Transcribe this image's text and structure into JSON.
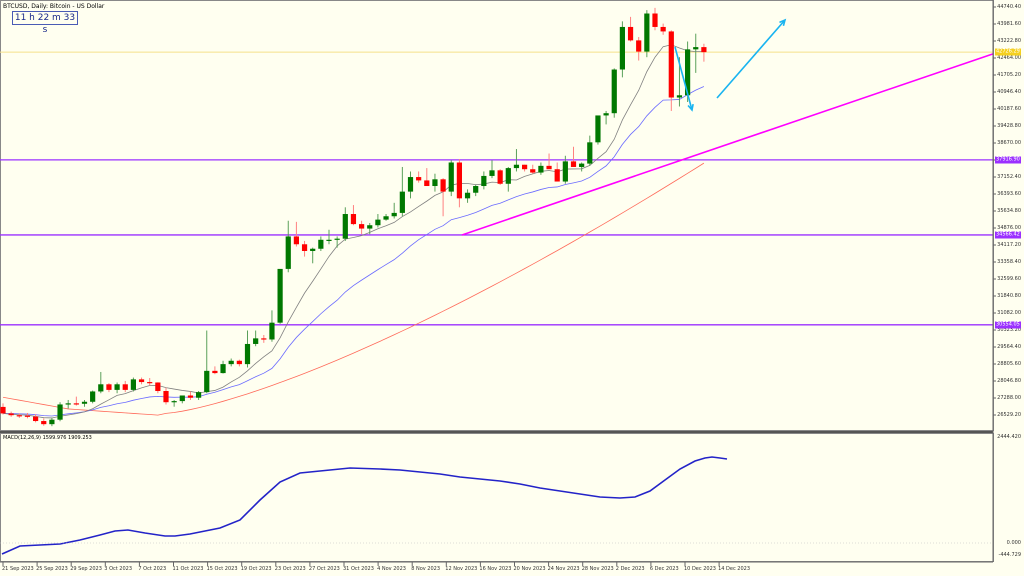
{
  "header": {
    "title": "BTCUSD, Daily: Bitcoin - US Dollar",
    "countdown": "11 h 22 m 33 s"
  },
  "colors": {
    "background": "#fffff0",
    "bull": "#007800",
    "bear": "#ff0000",
    "ma_fast": "#808080",
    "ma_mid": "#6a6aff",
    "ma_slow": "#ff6a5a",
    "hline": "#9b30ff",
    "trendline": "#ff00ff",
    "arrow": "#19b4f0",
    "bid_line": "#f5e08a",
    "macd": "#2323c8"
  },
  "price_axis": {
    "labels": [
      "44740.40",
      "43981.60",
      "43222.80",
      "42464.00",
      "41705.20",
      "40946.40",
      "40187.60",
      "39428.80",
      "38670.00",
      "37911.20",
      "37152.40",
      "36393.60",
      "35634.80",
      "34876.00",
      "34117.20",
      "33358.40",
      "32599.60",
      "31840.80",
      "31082.00",
      "30323.20",
      "29564.40",
      "28805.60",
      "28046.80",
      "27288.00",
      "26529.20"
    ],
    "current_price_tag": "42726.29",
    "level_tags": [
      "37916.90",
      "34566.42",
      "30554.05"
    ]
  },
  "macd_panel": {
    "title": "MACD(12,26,9) 1599.976 1909.253",
    "axis_labels": [
      "2444.420",
      "0.000",
      "-444.729"
    ]
  },
  "time_axis": {
    "labels": [
      "21 Sep 2023",
      "25 Sep 2023",
      "29 Sep 2023",
      "3 Oct 2023",
      "7 Oct 2023",
      "11 Oct 2023",
      "15 Oct 2023",
      "19 Oct 2023",
      "23 Oct 2023",
      "27 Oct 2023",
      "31 Oct 2023",
      "4 Nov 2023",
      "8 Nov 2023",
      "12 Nov 2023",
      "16 Nov 2023",
      "20 Nov 2023",
      "24 Nov 2023",
      "28 Nov 2023",
      "2 Dec 2023",
      "6 Dec 2023",
      "10 Dec 2023",
      "14 Dec 2023"
    ]
  },
  "chart_data": {
    "type": "candlestick",
    "title": "BTCUSD, Daily: Bitcoin - US Dollar",
    "symbol": "BTCUSD",
    "timeframe": "Daily",
    "x_range": [
      "21 Sep 2023",
      "15 Dec 2023"
    ],
    "ylim": [
      26100,
      44950
    ],
    "ohlc": [
      [
        26890,
        27050,
        26550,
        26600
      ],
      [
        26600,
        26680,
        26450,
        26520
      ],
      [
        26520,
        26600,
        26400,
        26500
      ],
      [
        26500,
        26620,
        26380,
        26460
      ],
      [
        26460,
        26560,
        26200,
        26260
      ],
      [
        26260,
        26380,
        26050,
        26120
      ],
      [
        26120,
        26400,
        26030,
        26320
      ],
      [
        26320,
        27100,
        26250,
        27000
      ],
      [
        27000,
        27200,
        26820,
        27050
      ],
      [
        27050,
        27350,
        26950,
        27030
      ],
      [
        27030,
        27200,
        26900,
        27120
      ],
      [
        27120,
        27620,
        27050,
        27580
      ],
      [
        27580,
        28450,
        27500,
        27900
      ],
      [
        27900,
        27950,
        27550,
        27650
      ],
      [
        27650,
        27980,
        27500,
        27900
      ],
      [
        27900,
        28050,
        27550,
        27650
      ],
      [
        27650,
        28200,
        27580,
        28120
      ],
      [
        28120,
        28200,
        27900,
        28000
      ],
      [
        28000,
        28180,
        27850,
        27980
      ],
      [
        27980,
        27990,
        27500,
        27600
      ],
      [
        27600,
        27750,
        27000,
        27100
      ],
      [
        27100,
        27200,
        26900,
        27150
      ],
      [
        27150,
        27400,
        27050,
        27400
      ],
      [
        27400,
        27580,
        27200,
        27300
      ],
      [
        27300,
        27600,
        27200,
        27550
      ],
      [
        27550,
        30300,
        27500,
        28500
      ],
      [
        28500,
        28700,
        28350,
        28400
      ],
      [
        28400,
        28950,
        28380,
        28800
      ],
      [
        28800,
        29050,
        28700,
        28950
      ],
      [
        28950,
        29000,
        28700,
        28800
      ],
      [
        28800,
        30300,
        28650,
        29700
      ],
      [
        29700,
        30300,
        29600,
        29950
      ],
      [
        29950,
        30100,
        29750,
        29900
      ],
      [
        29900,
        31200,
        29800,
        30650
      ],
      [
        30650,
        33000,
        30600,
        33050
      ],
      [
        33050,
        35200,
        32900,
        34500
      ],
      [
        34500,
        35150,
        34050,
        34150
      ],
      [
        34150,
        34300,
        33600,
        33850
      ],
      [
        33850,
        34000,
        33300,
        33950
      ],
      [
        33950,
        34500,
        33850,
        34350
      ],
      [
        34350,
        34800,
        34150,
        34350
      ],
      [
        34350,
        34500,
        34000,
        34400
      ],
      [
        34400,
        35800,
        34300,
        35500
      ],
      [
        35500,
        35900,
        35000,
        35050
      ],
      [
        35050,
        35200,
        34600,
        34850
      ],
      [
        34850,
        35100,
        34600,
        35000
      ],
      [
        35000,
        35500,
        34900,
        35250
      ],
      [
        35250,
        35500,
        35200,
        35400
      ],
      [
        35400,
        36000,
        35300,
        35550
      ],
      [
        35550,
        37600,
        35400,
        36500
      ],
      [
        36500,
        37400,
        36200,
        37150
      ],
      [
        37150,
        37400,
        36900,
        37000
      ],
      [
        37000,
        37550,
        36750,
        36750
      ],
      [
        36750,
        37300,
        36500,
        37050
      ],
      [
        37050,
        37100,
        35400,
        36500
      ],
      [
        36500,
        37900,
        36300,
        37800
      ],
      [
        37800,
        37950,
        35800,
        36200
      ],
      [
        36200,
        36600,
        36000,
        36450
      ],
      [
        36450,
        36800,
        36300,
        36750
      ],
      [
        36750,
        37400,
        36600,
        37200
      ],
      [
        37200,
        37900,
        37100,
        37450
      ],
      [
        37450,
        37500,
        36800,
        36850
      ],
      [
        36850,
        37600,
        36500,
        37550
      ],
      [
        37550,
        38400,
        37400,
        37700
      ],
      [
        37700,
        37700,
        37400,
        37500
      ],
      [
        37500,
        37700,
        37300,
        37350
      ],
      [
        37350,
        37800,
        37250,
        37650
      ],
      [
        37650,
        38200,
        37550,
        37500
      ],
      [
        37500,
        37800,
        36950,
        36950
      ],
      [
        36950,
        38100,
        36850,
        37850
      ],
      [
        37850,
        38500,
        37700,
        37600
      ],
      [
        37600,
        37800,
        37400,
        37750
      ],
      [
        37750,
        39000,
        37650,
        38700
      ],
      [
        38700,
        39800,
        38600,
        39900
      ],
      [
        39900,
        40100,
        39500,
        40000
      ],
      [
        40000,
        42000,
        39800,
        41950
      ],
      [
        41950,
        44100,
        41600,
        43850
      ],
      [
        43850,
        44300,
        43200,
        43250
      ],
      [
        43250,
        43400,
        42350,
        42750
      ],
      [
        42750,
        44600,
        42500,
        44450
      ],
      [
        44450,
        44700,
        43700,
        43850
      ],
      [
        43850,
        44000,
        43500,
        43650
      ],
      [
        43650,
        43700,
        40100,
        40700
      ],
      [
        40700,
        42500,
        40300,
        40800
      ],
      [
        40800,
        43200,
        40500,
        42850
      ],
      [
        42850,
        43550,
        41800,
        42950
      ],
      [
        42950,
        43100,
        42300,
        42726
      ]
    ],
    "series": [
      {
        "name": "MA fast",
        "color": "#808080"
      },
      {
        "name": "MA medium",
        "color": "#6a6aff"
      },
      {
        "name": "MA slow",
        "color": "#ff6a5a"
      },
      {
        "name": "MACD(12,26,9) main",
        "last_value": 1599.976
      },
      {
        "name": "MACD(12,26,9) signal",
        "last_value": 1909.253
      }
    ],
    "horizontal_levels": [
      37916.9,
      34566.42,
      30554.05
    ],
    "current_price": 42726.29,
    "annotations": [
      "Magenta ascending trendline from ~12 Nov 2023 (34560) rising to right edge (~42500)",
      "Blue arrow down from 6 Dec to ~10 Dec low",
      "Blue arrow up from ~12 Dec toward upper right"
    ],
    "macd_ylim": [
      -444.729,
      2444.42
    ],
    "grid": false
  }
}
